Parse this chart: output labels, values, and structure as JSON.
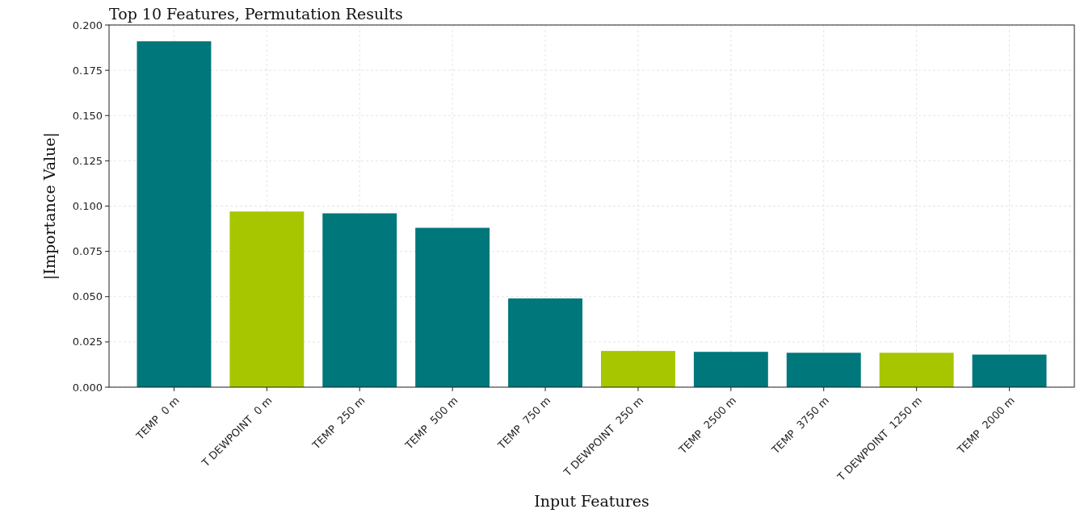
{
  "chart_data": {
    "type": "bar",
    "title": "Top 10 Features, Permutation Results",
    "xlabel": "Input Features",
    "ylabel": "|Importance Value|",
    "categories": [
      "TEMP  0 m",
      "T DEWPOINT  0 m",
      "TEMP  250 m",
      "TEMP  500 m",
      "TEMP  750 m",
      "T DEWPOINT  250 m",
      "TEMP  2500 m",
      "TEMP  3750 m",
      "T DEWPOINT  1250 m",
      "TEMP  2000 m"
    ],
    "values": [
      0.191,
      0.097,
      0.096,
      0.088,
      0.049,
      0.02,
      0.0195,
      0.019,
      0.019,
      0.018
    ],
    "colors": [
      "#00777a",
      "#a8c600",
      "#00777a",
      "#00777a",
      "#00777a",
      "#a8c600",
      "#00777a",
      "#00777a",
      "#a8c600",
      "#00777a"
    ],
    "ylim": [
      0,
      0.2
    ],
    "yticks": [
      {
        "value": 0,
        "label": "0.000"
      },
      {
        "value": 0.025,
        "label": "0.025"
      },
      {
        "value": 0.05,
        "label": "0.050"
      },
      {
        "value": 0.075,
        "label": "0.075"
      },
      {
        "value": 0.1,
        "label": "0.100"
      },
      {
        "value": 0.125,
        "label": "0.125"
      },
      {
        "value": 0.15,
        "label": "0.150"
      },
      {
        "value": 0.175,
        "label": "0.175"
      },
      {
        "value": 0.2,
        "label": "0.200"
      }
    ],
    "grid": true
  }
}
